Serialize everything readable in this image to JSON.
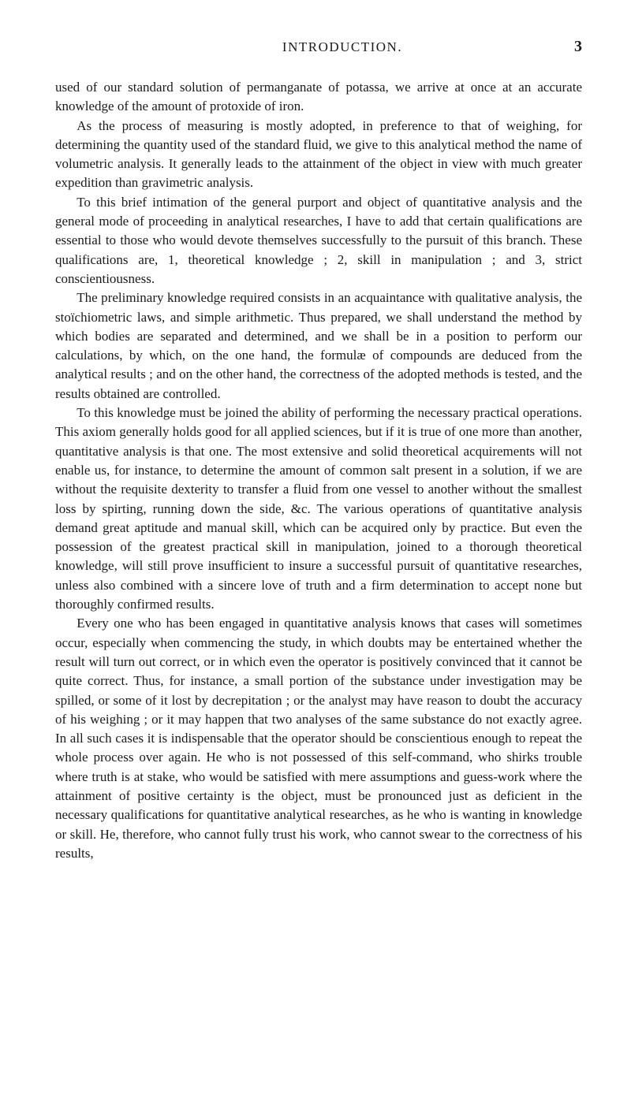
{
  "header": {
    "title": "INTRODUCTION.",
    "pageNumber": "3"
  },
  "paragraphs": {
    "p1": "used of our standard solution of permanganate of potassa, we arrive at once at an accurate knowledge of the amount of protoxide of iron.",
    "p2": "As the process of measuring is mostly adopted, in preference to that of weighing, for determining the quantity used of the standard fluid, we give to this analytical method the name of volumetric analysis. It generally leads to the attainment of the object in view with much greater expedition than gravimetric analysis.",
    "p3": "To this brief intimation of the general purport and object of quantitative analysis and the general mode of proceeding in analytical researches, I have to add that certain qualifications are essential to those who would devote themselves successfully to the pursuit of this branch. These qualifications are, 1, theoretical knowledge ; 2, skill in manipulation ; and 3, strict conscientiousness.",
    "p4": "The preliminary knowledge required consists in an acquaintance with qualitative analysis, the stoïchiometric laws, and simple arithmetic. Thus prepared, we shall understand the method by which bodies are separated and determined, and we shall be in a position to perform our calculations, by which, on the one hand, the formulæ of compounds are deduced from the analytical results ; and on the other hand, the correctness of the adopted methods is tested, and the results obtained are controlled.",
    "p5": "To this knowledge must be joined the ability of performing the necessary practical operations. This axiom generally holds good for all applied sciences, but if it is true of one more than another, quantitative analysis is that one. The most extensive and solid theoretical acquirements will not enable us, for instance, to determine the amount of common salt present in a solution, if we are without the requisite dexterity to transfer a fluid from one vessel to another without the smallest loss by spirting, running down the side, &c. The various operations of quantitative analysis demand great aptitude and manual skill, which can be acquired only by practice. But even the possession of the greatest practical skill in manipulation, joined to a thorough theoretical knowledge, will still prove insufficient to insure a successful pursuit of quantitative researches, unless also combined with a sincere love of truth and a firm determination to accept none but thoroughly confirmed results.",
    "p6": "Every one who has been engaged in quantitative analysis knows that cases will sometimes occur, especially when commencing the study, in which doubts may be entertained whether the result will turn out correct, or in which even the operator is positively convinced that it cannot be quite correct. Thus, for instance, a small portion of the substance under investigation may be spilled, or some of it lost by decrepitation ; or the analyst may have reason to doubt the accuracy of his weighing ; or it may happen that two analyses of the same substance do not exactly agree. In all such cases it is indispensable that the operator should be conscientious enough to repeat the whole process over again. He who is not possessed of this self-command, who shirks trouble where truth is at stake, who would be satisfied with mere assumptions and guess-work where the attainment of positive certainty is the object, must be pronounced just as deficient in the necessary qualifications for quantitative analytical researches, as he who is wanting in knowledge or skill. He, therefore, who cannot fully trust his work, who cannot swear to the correctness of his results,"
  }
}
